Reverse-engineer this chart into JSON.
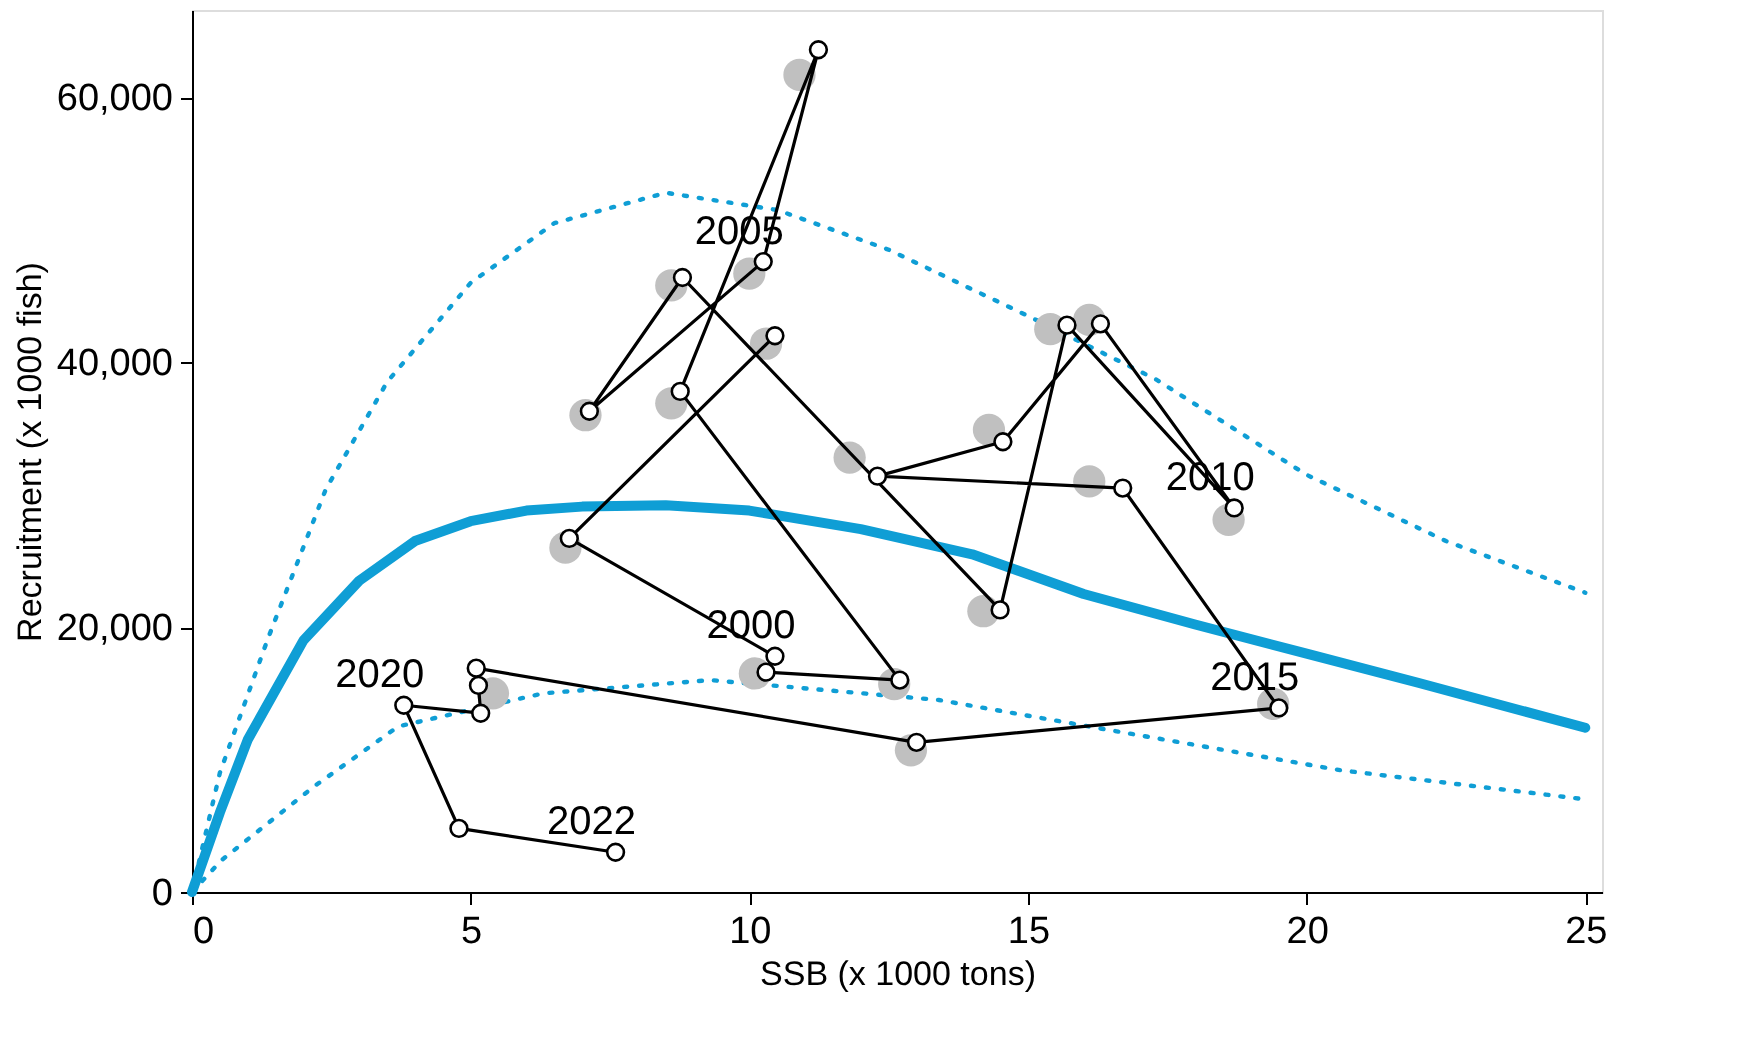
{
  "chart_data": {
    "type": "line",
    "xlabel": "SSB (x 1000 tons)",
    "ylabel": "Recruitment (x 1000 fish)",
    "xlim": [
      0,
      25.3
    ],
    "xticks": [
      0,
      5,
      10,
      15,
      20,
      25
    ],
    "ylim": [
      0,
      66600
    ],
    "yticks": [
      {
        "value": 0,
        "label": "0"
      },
      {
        "value": 20000,
        "label": "20,000"
      },
      {
        "value": 40000,
        "label": "40,000"
      },
      {
        "value": 60000,
        "label": "60,000"
      }
    ],
    "grid": false,
    "series": [
      {
        "color": "#0f9ed5",
        "line_style": "solid",
        "x": [
          0,
          0.5,
          1,
          2,
          3,
          4,
          5,
          6,
          7,
          8.5,
          10,
          12,
          14,
          16,
          18,
          20,
          22,
          25
        ],
        "values": [
          0,
          6000,
          11500,
          19000,
          23500,
          26500,
          28000,
          28800,
          29100,
          29200,
          28800,
          27400,
          25500,
          22500,
          20200,
          18000,
          15800,
          12400
        ]
      },
      {
        "color": "#0f9ed5",
        "line_style": "dotted",
        "x": [
          0,
          0.5,
          1.35,
          2.4,
          3.5,
          5,
          6.5,
          8.5,
          10.5,
          12.5,
          15,
          17.3,
          20,
          22.5,
          25
        ],
        "values": [
          0,
          9000,
          19000,
          30400,
          38500,
          46000,
          50500,
          52800,
          51500,
          48500,
          43500,
          38700,
          31500,
          26500,
          22600
        ]
      },
      {
        "color": "#0f9ed5",
        "line_style": "dotted",
        "x": [
          0,
          0.53,
          2.2,
          3.7,
          6.3,
          9.3,
          13.4,
          16.5,
          20.6,
          25
        ],
        "values": [
          0,
          2400,
          8000,
          12500,
          15000,
          16000,
          14500,
          12200,
          9200,
          7000
        ]
      },
      {
        "type": "scatter",
        "color": "#c0c0c0",
        "x": [
          10.3,
          6.7,
          10.1,
          12.6,
          8.6,
          10.9,
          10.0,
          7.06,
          8.6,
          14.2,
          15.4,
          18.6,
          16.1,
          14.3,
          11.8,
          16.1,
          19.4,
          12.9,
          5.4
        ],
        "values": [
          41400,
          26000,
          16500,
          15700,
          36900,
          61700,
          46700,
          36000,
          45800,
          21200,
          42500,
          28100,
          43200,
          34900,
          32800,
          31000,
          14200,
          10700,
          15000
        ]
      },
      {
        "color": "#000000",
        "marker": "circle",
        "line_style": "solid",
        "x": [
          10.46,
          6.77,
          10.46,
          10.3,
          12.7,
          8.76,
          11.24,
          10.25,
          7.13,
          8.8,
          14.5,
          15.7,
          18.7,
          16.3,
          14.55,
          12.3,
          16.7,
          19.5,
          13.0,
          5.1,
          5.14,
          5.18,
          3.8,
          4.79,
          7.6
        ],
        "values": [
          42000,
          26700,
          17800,
          16600,
          16000,
          37800,
          63600,
          47600,
          36300,
          46400,
          21300,
          42800,
          29000,
          42900,
          34000,
          31400,
          30500,
          13900,
          11300,
          16900,
          15600,
          13500,
          14100,
          4800,
          3000
        ]
      }
    ],
    "annotations": [
      {
        "text": "2000",
        "x": 10.46,
        "y": 17800
      },
      {
        "text": "2005",
        "x": 10.25,
        "y": 47600
      },
      {
        "text": "2010",
        "x": 18.7,
        "y": 29000
      },
      {
        "text": "2015",
        "x": 19.5,
        "y": 13900
      },
      {
        "text": "2020",
        "x": 3.8,
        "y": 14100
      },
      {
        "text": "2022",
        "x": 7.6,
        "y": 3000
      }
    ]
  }
}
